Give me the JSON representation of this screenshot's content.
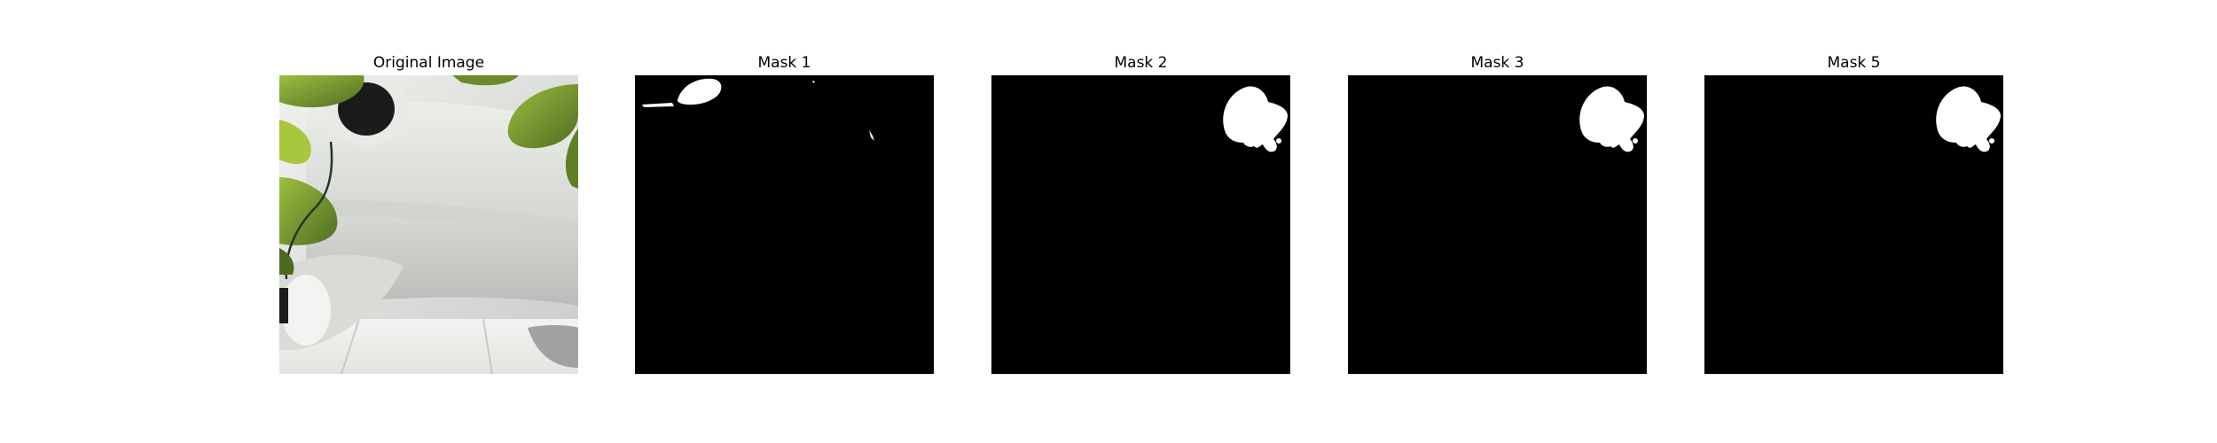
{
  "figure": {
    "panels": [
      {
        "title": "Original Image",
        "kind": "photo"
      },
      {
        "title": "Mask 1",
        "kind": "mask"
      },
      {
        "title": "Mask 2",
        "kind": "mask"
      },
      {
        "title": "Mask 3",
        "kind": "mask"
      },
      {
        "title": "Mask 5",
        "kind": "mask"
      }
    ]
  },
  "colors": {
    "background": "#ffffff",
    "mask_background": "#000000",
    "mask_foreground": "#ffffff",
    "leaf_green": "#6f8f2e",
    "wall_white": "#e2e3df"
  }
}
